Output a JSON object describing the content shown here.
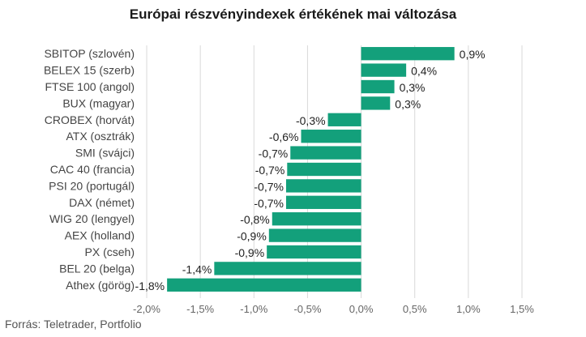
{
  "chart_data": {
    "type": "bar",
    "orientation": "horizontal",
    "title": "Európai részvényindexek értékének mai változása",
    "xlabel": "",
    "ylabel": "",
    "xlim": [
      -2.0,
      1.5
    ],
    "xticks": [
      -2.0,
      -1.5,
      -1.0,
      -0.5,
      0.0,
      0.5,
      1.0,
      1.5
    ],
    "xtick_labels": [
      "-2,0%",
      "-1,5%",
      "-1,0%",
      "-0,5%",
      "0,0%",
      "0,5%",
      "1,0%",
      "1,5%"
    ],
    "grid": true,
    "bar_color": "#13a07b",
    "categories": [
      "SBITOP (szlovén)",
      "BELEX 15 (szerb)",
      "FTSE 100 (angol)",
      "BUX (magyar)",
      "CROBEX (horvát)",
      "ATX (osztrák)",
      "SMI (svájci)",
      "CAC 40 (francia)",
      "PSI 20 (portugál)",
      "DAX (német)",
      "WIG 20 (lengyel)",
      "AEX (holland)",
      "PX (cseh)",
      "BEL 20 (belga)",
      "Athex (görög)"
    ],
    "values": [
      0.87,
      0.42,
      0.31,
      0.27,
      -0.31,
      -0.56,
      -0.66,
      -0.69,
      -0.7,
      -0.7,
      -0.83,
      -0.86,
      -0.88,
      -1.37,
      -1.81
    ],
    "data_labels": [
      "0,9%",
      "0,4%",
      "0,3%",
      "0,3%",
      "-0,3%",
      "-0,6%",
      "-0,7%",
      "-0,7%",
      "-0,7%",
      "-0,7%",
      "-0,8%",
      "-0,9%",
      "-0,9%",
      "-1,4%",
      "-1,8%"
    ]
  },
  "source": "Forrás: Teletrader, Portfolio"
}
